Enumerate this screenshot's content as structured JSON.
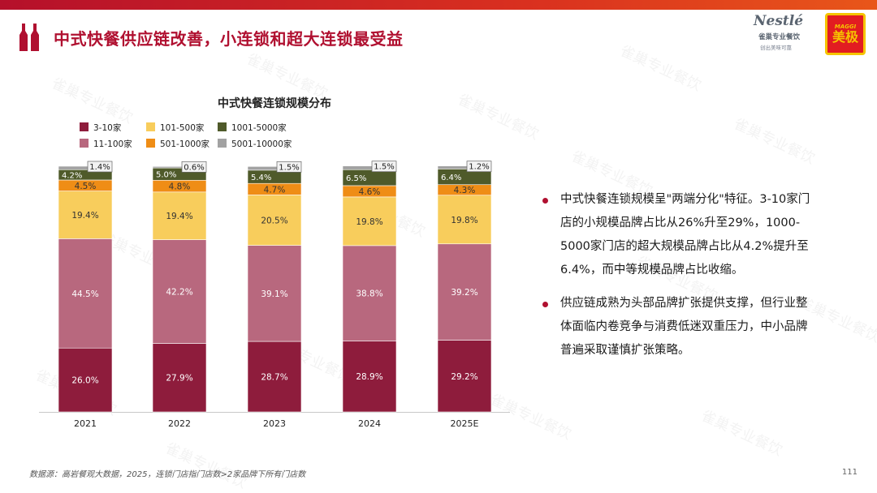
{
  "header": {
    "title": "中式快餐供应链改善，小连锁和超大连锁最受益"
  },
  "logos": {
    "nestle_word": "Nestlé",
    "nestle_sub1": "雀巢专业餐饮",
    "nestle_sub2": "创出美味可靠",
    "maggi_word": "MAGGI",
    "maggi_cn": "美极"
  },
  "watermark_text": "雀巢专业餐饮",
  "colors": {
    "stripe": "#c81e2a",
    "title": "#b01030",
    "bullet": "#b01030"
  },
  "chart_data": {
    "type": "bar",
    "stacked": true,
    "title": "中式快餐连锁规模分布",
    "categories": [
      "2021",
      "2022",
      "2023",
      "2024",
      "2025E"
    ],
    "ylim": [
      0,
      100
    ],
    "legend_position": "top-left",
    "series": [
      {
        "name": "3-10家",
        "color": "#8e1c3c",
        "values": [
          26.0,
          27.9,
          28.7,
          28.9,
          29.2
        ],
        "labels": [
          "26.0%",
          "27.9%",
          "28.7%",
          "28.9%",
          "29.2%"
        ]
      },
      {
        "name": "11-100家",
        "color": "#b8687e",
        "values": [
          44.5,
          42.2,
          39.1,
          38.8,
          39.2
        ],
        "labels": [
          "44.5%",
          "42.2%",
          "39.1%",
          "38.8%",
          "39.2%"
        ]
      },
      {
        "name": "101-500家",
        "color": "#f8cd5c",
        "values": [
          19.4,
          19.4,
          20.5,
          19.8,
          19.8
        ],
        "labels": [
          "19.4%",
          "19.4%",
          "20.5%",
          "19.8%",
          "19.8%"
        ]
      },
      {
        "name": "501-1000家",
        "color": "#ef8d16",
        "values": [
          4.5,
          4.8,
          4.7,
          4.6,
          4.3
        ],
        "labels": [
          "4.5%",
          "4.8%",
          "4.7%",
          "4.6%",
          "4.3%"
        ]
      },
      {
        "name": "1001-5000家",
        "color": "#4f5a2a",
        "values": [
          4.2,
          5.0,
          5.4,
          6.5,
          6.4
        ],
        "labels": [
          "4.2%",
          "5.0%",
          "5.4%",
          "6.5%",
          "6.4%"
        ]
      },
      {
        "name": "5001-10000家",
        "color": "#a2a2a2",
        "values": [
          1.4,
          0.6,
          1.5,
          1.5,
          1.2
        ],
        "labels": [
          "1.4%",
          "0.6%",
          "1.5%",
          "1.5%",
          "1.2%"
        ]
      }
    ]
  },
  "bullets": [
    "中式快餐连锁规模呈\"两端分化\"特征。3-10家门店的小规模品牌占比从26%升至29%，1000-5000家门店的超大规模品牌占比从4.2%提升至6.4%，而中等规模品牌占比收缩。",
    "供应链成熟为头部品牌扩张提供支撑，但行业整体面临内卷竞争与消费低迷双重压力，中小品牌普遍采取谨慎扩张策略。"
  ],
  "footer": {
    "source": "数据源：高岩餐观大数据，2025，连锁门店指门店数>2家品牌下所有门店数",
    "page_number": "111"
  }
}
